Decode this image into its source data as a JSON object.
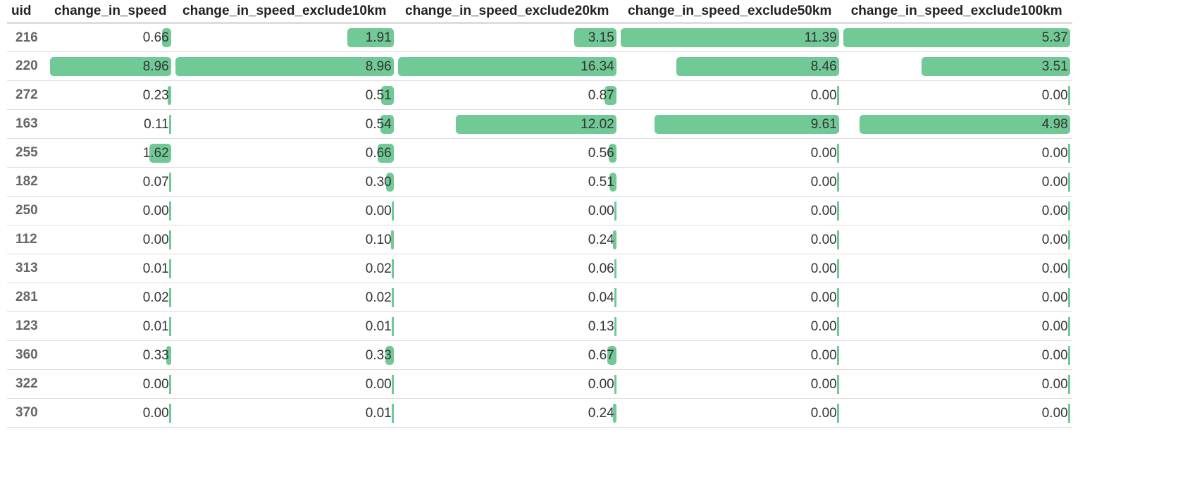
{
  "table": {
    "columns": [
      "uid",
      "change_in_speed",
      "change_in_speed_exclude10km",
      "change_in_speed_exclude20km",
      "change_in_speed_exclude50km",
      "change_in_speed_exclude100km"
    ],
    "bar_color": "#71c996",
    "rows": [
      {
        "uid": "216",
        "values": [
          "0.66",
          "1.91",
          "3.15",
          "11.39",
          "5.37"
        ]
      },
      {
        "uid": "220",
        "values": [
          "8.96",
          "8.96",
          "16.34",
          "8.46",
          "3.51"
        ]
      },
      {
        "uid": "272",
        "values": [
          "0.23",
          "0.51",
          "0.87",
          "0.00",
          "0.00"
        ]
      },
      {
        "uid": "163",
        "values": [
          "0.11",
          "0.54",
          "12.02",
          "9.61",
          "4.98"
        ]
      },
      {
        "uid": "255",
        "values": [
          "1.62",
          "0.66",
          "0.56",
          "0.00",
          "0.00"
        ]
      },
      {
        "uid": "182",
        "values": [
          "0.07",
          "0.30",
          "0.51",
          "0.00",
          "0.00"
        ]
      },
      {
        "uid": "250",
        "values": [
          "0.00",
          "0.00",
          "0.00",
          "0.00",
          "0.00"
        ]
      },
      {
        "uid": "112",
        "values": [
          "0.00",
          "0.10",
          "0.24",
          "0.00",
          "0.00"
        ]
      },
      {
        "uid": "313",
        "values": [
          "0.01",
          "0.02",
          "0.06",
          "0.00",
          "0.00"
        ]
      },
      {
        "uid": "281",
        "values": [
          "0.02",
          "0.02",
          "0.04",
          "0.00",
          "0.00"
        ]
      },
      {
        "uid": "123",
        "values": [
          "0.01",
          "0.01",
          "0.13",
          "0.00",
          "0.00"
        ]
      },
      {
        "uid": "360",
        "values": [
          "0.33",
          "0.33",
          "0.67",
          "0.00",
          "0.00"
        ]
      },
      {
        "uid": "322",
        "values": [
          "0.00",
          "0.00",
          "0.00",
          "0.00",
          "0.00"
        ]
      },
      {
        "uid": "370",
        "values": [
          "0.00",
          "0.01",
          "0.24",
          "0.00",
          "0.00"
        ]
      }
    ]
  }
}
